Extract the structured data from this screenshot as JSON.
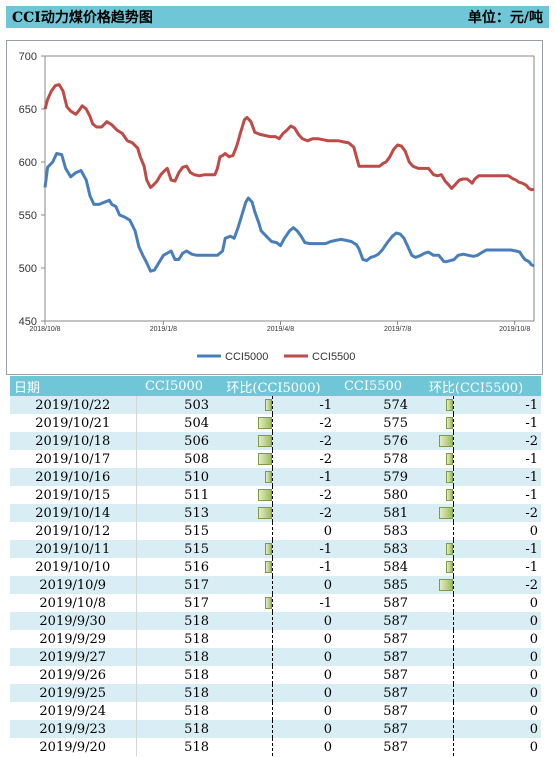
{
  "header": {
    "title": "CCI动力煤价格趋势图",
    "unit": "单位：元/吨"
  },
  "colors": {
    "header_bg": "#6fc6d6",
    "row_alt": "#d9eef4",
    "cci5000": "#4a7ebb",
    "cci5500": "#be4b48",
    "bar": "#9fbb5e"
  },
  "chart_data": {
    "type": "line",
    "x_ticks": [
      "2018/10/8",
      "2019/1/8",
      "2019/4/8",
      "2019/7/8",
      "2019/10/8"
    ],
    "ylim": [
      450,
      700
    ],
    "y_ticks": [
      450,
      500,
      550,
      600,
      650,
      700
    ],
    "legend_position": "bottom",
    "series": [
      {
        "name": "CCI5000",
        "color": "#4a7ebb",
        "points": [
          [
            0,
            576
          ],
          [
            2,
            595
          ],
          [
            6,
            600
          ],
          [
            9,
            608
          ],
          [
            13,
            607
          ],
          [
            16,
            594
          ],
          [
            20,
            586
          ],
          [
            24,
            590
          ],
          [
            28,
            592
          ],
          [
            32,
            583
          ],
          [
            35,
            568
          ],
          [
            38,
            560
          ],
          [
            42,
            560
          ],
          [
            46,
            562
          ],
          [
            50,
            564
          ],
          [
            52,
            560
          ],
          [
            55,
            558
          ],
          [
            58,
            550
          ],
          [
            62,
            548
          ],
          [
            66,
            545
          ],
          [
            70,
            535
          ],
          [
            73,
            520
          ],
          [
            76,
            512
          ],
          [
            79,
            505
          ],
          [
            82,
            497
          ],
          [
            85,
            498
          ],
          [
            88,
            504
          ],
          [
            92,
            512
          ],
          [
            95,
            514
          ],
          [
            98,
            516
          ],
          [
            101,
            508
          ],
          [
            104,
            508
          ],
          [
            107,
            514
          ],
          [
            110,
            516
          ],
          [
            114,
            513
          ],
          [
            118,
            512
          ],
          [
            122,
            512
          ],
          [
            126,
            512
          ],
          [
            130,
            512
          ],
          [
            134,
            512
          ],
          [
            138,
            516
          ],
          [
            140,
            528
          ],
          [
            144,
            530
          ],
          [
            147,
            528
          ],
          [
            150,
            538
          ],
          [
            153,
            550
          ],
          [
            156,
            562
          ],
          [
            158,
            566
          ],
          [
            161,
            562
          ],
          [
            163,
            553
          ],
          [
            166,
            543
          ],
          [
            168,
            535
          ],
          [
            172,
            530
          ],
          [
            176,
            525
          ],
          [
            180,
            524
          ],
          [
            183,
            521
          ],
          [
            186,
            528
          ],
          [
            190,
            535
          ],
          [
            193,
            538
          ],
          [
            196,
            535
          ],
          [
            199,
            530
          ],
          [
            202,
            524
          ],
          [
            206,
            523
          ],
          [
            212,
            523
          ],
          [
            218,
            523
          ],
          [
            222,
            525
          ],
          [
            226,
            526
          ],
          [
            230,
            527
          ],
          [
            234,
            526
          ],
          [
            238,
            525
          ],
          [
            242,
            522
          ],
          [
            244,
            518
          ],
          [
            247,
            508
          ],
          [
            250,
            507
          ],
          [
            253,
            510
          ],
          [
            256,
            511
          ],
          [
            259,
            513
          ],
          [
            262,
            517
          ],
          [
            266,
            524
          ],
          [
            270,
            530
          ],
          [
            273,
            533
          ],
          [
            276,
            532
          ],
          [
            279,
            528
          ],
          [
            282,
            520
          ],
          [
            285,
            512
          ],
          [
            288,
            510
          ],
          [
            292,
            512
          ],
          [
            295,
            514
          ],
          [
            298,
            515
          ],
          [
            302,
            512
          ],
          [
            306,
            512
          ],
          [
            310,
            506
          ],
          [
            312,
            506
          ],
          [
            315,
            507
          ],
          [
            318,
            508
          ],
          [
            321,
            512
          ],
          [
            325,
            513
          ],
          [
            329,
            512
          ],
          [
            333,
            511
          ],
          [
            336,
            512
          ],
          [
            340,
            515
          ],
          [
            343,
            517
          ],
          [
            347,
            517
          ],
          [
            352,
            517
          ],
          [
            357,
            517
          ],
          [
            362,
            517
          ],
          [
            366,
            516
          ],
          [
            369,
            515
          ],
          [
            371,
            511
          ],
          [
            373,
            508
          ],
          [
            376,
            506
          ],
          [
            378,
            503
          ],
          [
            380,
            502
          ]
        ]
      },
      {
        "name": "CCI5500",
        "color": "#be4b48",
        "points": [
          [
            0,
            650
          ],
          [
            2,
            659
          ],
          [
            5,
            667
          ],
          [
            8,
            672
          ],
          [
            11,
            673
          ],
          [
            14,
            667
          ],
          [
            17,
            652
          ],
          [
            20,
            648
          ],
          [
            24,
            645
          ],
          [
            26,
            648
          ],
          [
            29,
            653
          ],
          [
            32,
            650
          ],
          [
            35,
            643
          ],
          [
            37,
            636
          ],
          [
            40,
            633
          ],
          [
            44,
            633
          ],
          [
            48,
            638
          ],
          [
            52,
            635
          ],
          [
            56,
            630
          ],
          [
            60,
            627
          ],
          [
            64,
            620
          ],
          [
            68,
            618
          ],
          [
            72,
            613
          ],
          [
            74,
            605
          ],
          [
            77,
            596
          ],
          [
            79,
            583
          ],
          [
            82,
            576
          ],
          [
            84,
            578
          ],
          [
            87,
            582
          ],
          [
            90,
            588
          ],
          [
            93,
            592
          ],
          [
            95,
            594
          ],
          [
            98,
            583
          ],
          [
            101,
            582
          ],
          [
            104,
            590
          ],
          [
            107,
            595
          ],
          [
            110,
            596
          ],
          [
            113,
            590
          ],
          [
            116,
            588
          ],
          [
            120,
            587
          ],
          [
            124,
            588
          ],
          [
            128,
            588
          ],
          [
            132,
            588
          ],
          [
            134,
            594
          ],
          [
            136,
            605
          ],
          [
            138,
            606
          ],
          [
            140,
            608
          ],
          [
            143,
            605
          ],
          [
            146,
            606
          ],
          [
            149,
            615
          ],
          [
            152,
            628
          ],
          [
            155,
            640
          ],
          [
            157,
            642
          ],
          [
            160,
            638
          ],
          [
            163,
            628
          ],
          [
            167,
            626
          ],
          [
            171,
            625
          ],
          [
            175,
            624
          ],
          [
            179,
            624
          ],
          [
            182,
            622
          ],
          [
            185,
            627
          ],
          [
            188,
            630
          ],
          [
            191,
            634
          ],
          [
            194,
            632
          ],
          [
            197,
            626
          ],
          [
            200,
            622
          ],
          [
            204,
            620
          ],
          [
            208,
            622
          ],
          [
            212,
            622
          ],
          [
            216,
            621
          ],
          [
            220,
            620
          ],
          [
            224,
            620
          ],
          [
            228,
            620
          ],
          [
            232,
            619
          ],
          [
            236,
            618
          ],
          [
            240,
            614
          ],
          [
            242,
            605
          ],
          [
            244,
            596
          ],
          [
            248,
            596
          ],
          [
            252,
            596
          ],
          [
            256,
            596
          ],
          [
            260,
            596
          ],
          [
            263,
            599
          ],
          [
            265,
            600
          ],
          [
            268,
            605
          ],
          [
            271,
            612
          ],
          [
            274,
            616
          ],
          [
            277,
            615
          ],
          [
            280,
            610
          ],
          [
            283,
            600
          ],
          [
            286,
            596
          ],
          [
            290,
            594
          ],
          [
            294,
            594
          ],
          [
            298,
            594
          ],
          [
            302,
            588
          ],
          [
            305,
            587
          ],
          [
            308,
            588
          ],
          [
            311,
            582
          ],
          [
            314,
            578
          ],
          [
            316,
            575
          ],
          [
            319,
            579
          ],
          [
            322,
            583
          ],
          [
            325,
            584
          ],
          [
            328,
            584
          ],
          [
            330,
            582
          ],
          [
            332,
            580
          ],
          [
            334,
            584
          ],
          [
            337,
            587
          ],
          [
            340,
            587
          ],
          [
            345,
            587
          ],
          [
            350,
            587
          ],
          [
            355,
            587
          ],
          [
            360,
            587
          ],
          [
            364,
            584
          ],
          [
            366,
            583
          ],
          [
            368,
            581
          ],
          [
            371,
            580
          ],
          [
            374,
            578
          ],
          [
            376,
            575
          ],
          [
            378,
            574
          ],
          [
            380,
            574
          ]
        ]
      }
    ]
  },
  "table": {
    "headers": [
      "日期",
      "CCI5000",
      "环比(CCI5000)",
      "CCI5500",
      "环比(CCI5500)"
    ],
    "rows": [
      {
        "date": "2019/10/22",
        "v1": "503",
        "d1": "-1",
        "v2": "574",
        "d2": "-1"
      },
      {
        "date": "2019/10/21",
        "v1": "504",
        "d1": "-2",
        "v2": "575",
        "d2": "-1"
      },
      {
        "date": "2019/10/18",
        "v1": "506",
        "d1": "-2",
        "v2": "576",
        "d2": "-2"
      },
      {
        "date": "2019/10/17",
        "v1": "508",
        "d1": "-2",
        "v2": "578",
        "d2": "-1"
      },
      {
        "date": "2019/10/16",
        "v1": "510",
        "d1": "-1",
        "v2": "579",
        "d2": "-1"
      },
      {
        "date": "2019/10/15",
        "v1": "511",
        "d1": "-2",
        "v2": "580",
        "d2": "-1"
      },
      {
        "date": "2019/10/14",
        "v1": "513",
        "d1": "-2",
        "v2": "581",
        "d2": "-2"
      },
      {
        "date": "2019/10/12",
        "v1": "515",
        "d1": "0",
        "v2": "583",
        "d2": "0"
      },
      {
        "date": "2019/10/11",
        "v1": "515",
        "d1": "-1",
        "v2": "583",
        "d2": "-1"
      },
      {
        "date": "2019/10/10",
        "v1": "516",
        "d1": "-1",
        "v2": "584",
        "d2": "-1"
      },
      {
        "date": "2019/10/9",
        "v1": "517",
        "d1": "0",
        "v2": "585",
        "d2": "-2"
      },
      {
        "date": "2019/10/8",
        "v1": "517",
        "d1": "-1",
        "v2": "587",
        "d2": "0"
      },
      {
        "date": "2019/9/30",
        "v1": "518",
        "d1": "0",
        "v2": "587",
        "d2": "0"
      },
      {
        "date": "2019/9/29",
        "v1": "518",
        "d1": "0",
        "v2": "587",
        "d2": "0"
      },
      {
        "date": "2019/9/27",
        "v1": "518",
        "d1": "0",
        "v2": "587",
        "d2": "0"
      },
      {
        "date": "2019/9/26",
        "v1": "518",
        "d1": "0",
        "v2": "587",
        "d2": "0"
      },
      {
        "date": "2019/9/25",
        "v1": "518",
        "d1": "0",
        "v2": "587",
        "d2": "0"
      },
      {
        "date": "2019/9/24",
        "v1": "518",
        "d1": "0",
        "v2": "587",
        "d2": "0"
      },
      {
        "date": "2019/9/23",
        "v1": "518",
        "d1": "0",
        "v2": "587",
        "d2": "0"
      },
      {
        "date": "2019/9/20",
        "v1": "518",
        "d1": "0",
        "v2": "587",
        "d2": "0"
      }
    ]
  }
}
